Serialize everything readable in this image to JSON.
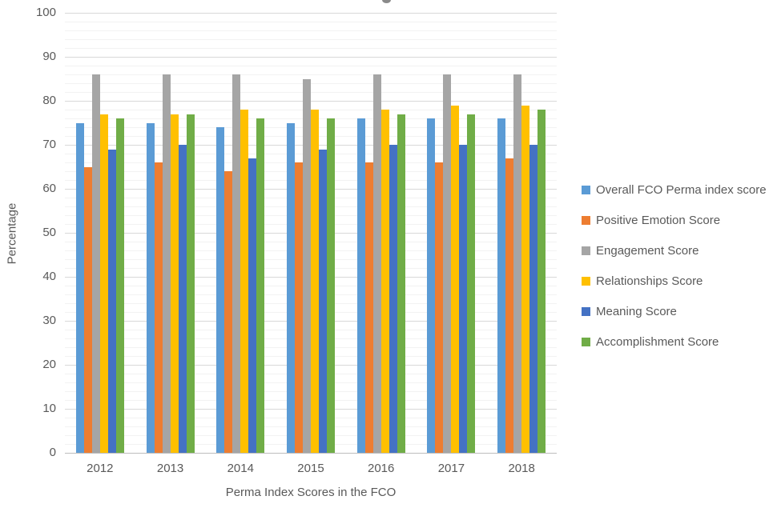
{
  "chart_data": {
    "type": "bar",
    "categories": [
      "2012",
      "2013",
      "2014",
      "2015",
      "2016",
      "2017",
      "2018"
    ],
    "series": [
      {
        "name": "Overall FCO Perma index score",
        "color": "#5B9BD5",
        "values": [
          75,
          75,
          74,
          75,
          76,
          76,
          76
        ]
      },
      {
        "name": "Positive Emotion Score",
        "color": "#ED7D31",
        "values": [
          65,
          66,
          64,
          66,
          66,
          66,
          67
        ]
      },
      {
        "name": "Engagement Score",
        "color": "#A5A5A5",
        "values": [
          86,
          86,
          86,
          85,
          86,
          86,
          86
        ]
      },
      {
        "name": "Relationships Score",
        "color": "#FFC000",
        "values": [
          77,
          77,
          78,
          78,
          78,
          79,
          79
        ]
      },
      {
        "name": "Meaning Score",
        "color": "#4472C4",
        "values": [
          69,
          70,
          67,
          69,
          70,
          70,
          70
        ]
      },
      {
        "name": "Accomplishment Score",
        "color": "#70AD47",
        "values": [
          76,
          77,
          76,
          76,
          77,
          77,
          78
        ]
      }
    ],
    "title": "",
    "xlabel": "Perma Index Scores in the FCO",
    "ylabel": "Percentage",
    "ylim": [
      0,
      100
    ],
    "y_ticks": [
      0,
      10,
      20,
      30,
      40,
      50,
      60,
      70,
      80,
      90,
      100
    ],
    "minor_grid_step": 2,
    "major_grid_step": 10,
    "grid": true,
    "legend_position": "right",
    "grid_colors": {
      "major": "#D9D9D9",
      "minor": "#F2F2F2",
      "axis_line": "#BDBDBD"
    },
    "text_color": "#595959"
  }
}
